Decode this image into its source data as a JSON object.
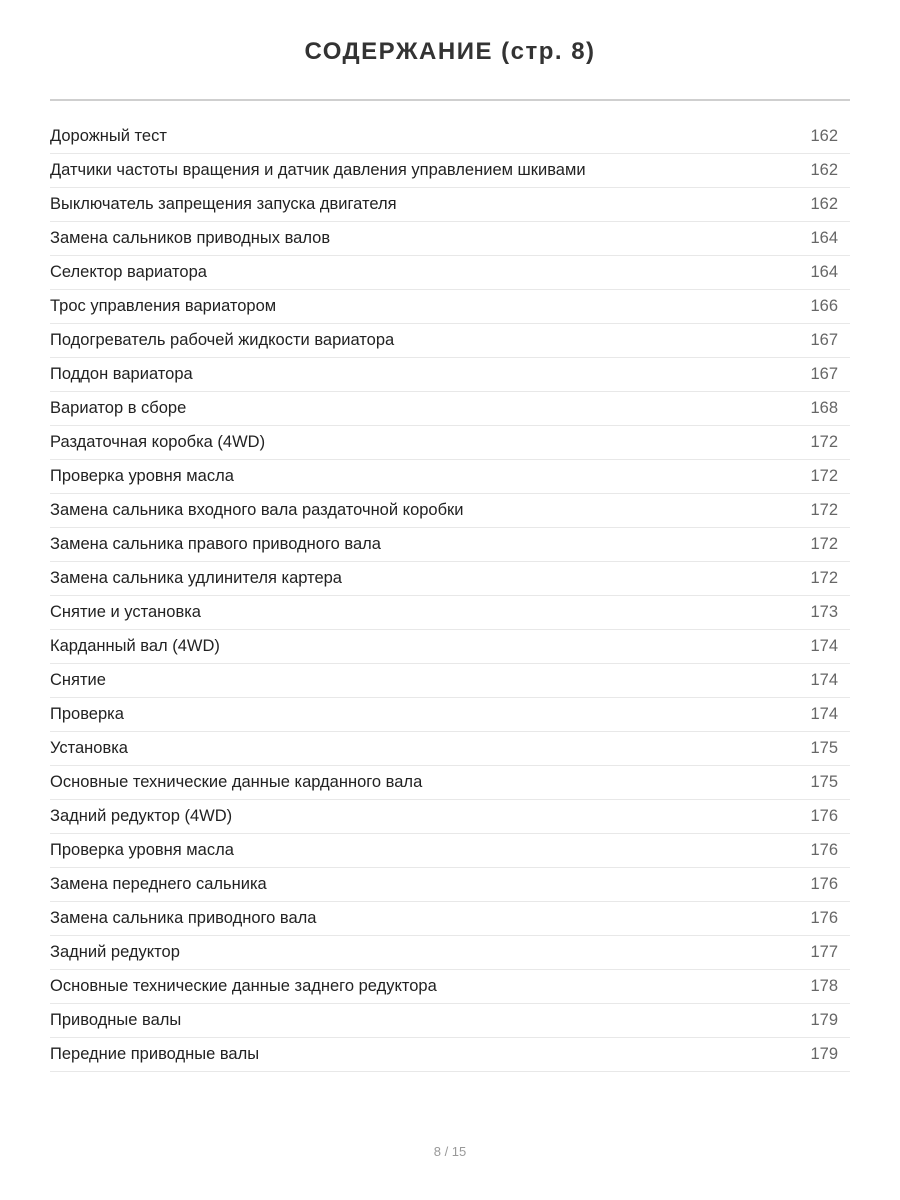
{
  "title": "СОДЕРЖАНИЕ (стр. 8)",
  "entries": [
    {
      "label": "Дорожный тест",
      "page": "162"
    },
    {
      "label": "Датчики частоты вращения и датчик давления управлением шкивами",
      "page": "162"
    },
    {
      "label": "Выключатель запрещения запуска двигателя",
      "page": "162"
    },
    {
      "label": "Замена сальников приводных валов",
      "page": "164"
    },
    {
      "label": "Селектор вариатора",
      "page": "164"
    },
    {
      "label": "Трос управления вариатором",
      "page": "166"
    },
    {
      "label": "Подогреватель рабочей жидкости вариатора",
      "page": "167"
    },
    {
      "label": "Поддон вариатора",
      "page": "167"
    },
    {
      "label": "Вариатор в сборе",
      "page": "168"
    },
    {
      "label": "Раздаточная коробка (4WD)",
      "page": "172"
    },
    {
      "label": "Проверка уровня масла",
      "page": "172"
    },
    {
      "label": "Замена сальника входного вала раздаточной коробки",
      "page": "172"
    },
    {
      "label": "Замена сальника правого приводного вала",
      "page": "172"
    },
    {
      "label": "Замена сальника удлинителя картера",
      "page": "172"
    },
    {
      "label": "Снятие и установка",
      "page": "173"
    },
    {
      "label": "Карданный вал (4WD)",
      "page": "174"
    },
    {
      "label": "Снятие",
      "page": "174"
    },
    {
      "label": "Проверка",
      "page": "174"
    },
    {
      "label": "Установка",
      "page": "175"
    },
    {
      "label": "Основные технические данные карданного вала",
      "page": "175"
    },
    {
      "label": "Задний редуктор (4WD)",
      "page": "176"
    },
    {
      "label": "Проверка уровня масла",
      "page": "176"
    },
    {
      "label": "Замена переднего сальника",
      "page": "176"
    },
    {
      "label": "Замена сальника приводного вала",
      "page": "176"
    },
    {
      "label": "Задний редуктор",
      "page": "177"
    },
    {
      "label": "Основные технические данные заднего редуктора",
      "page": "178"
    },
    {
      "label": "Приводные валы",
      "page": "179"
    },
    {
      "label": "Передние приводные валы",
      "page": "179"
    }
  ],
  "footer": {
    "pagination": "8 / 15"
  }
}
